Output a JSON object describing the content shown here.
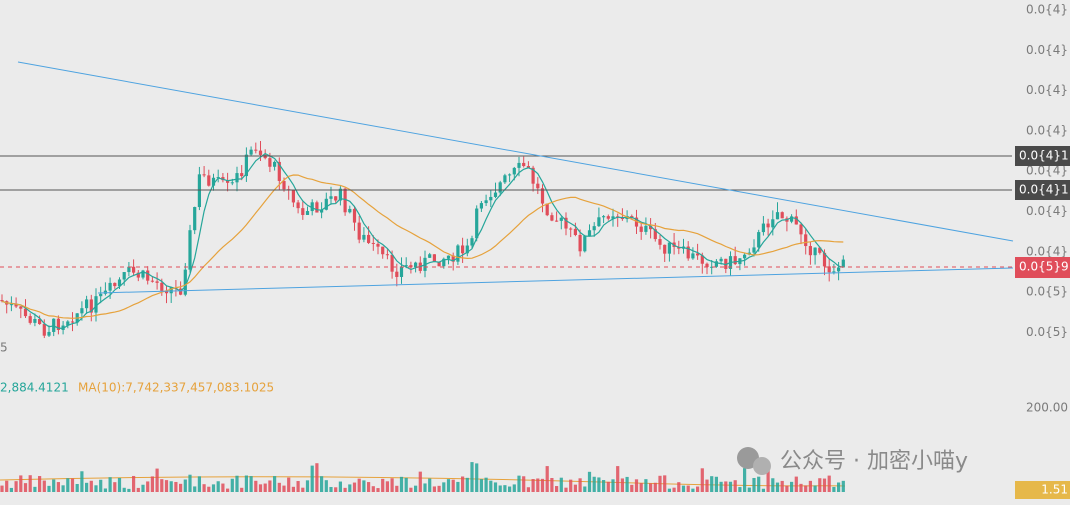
{
  "y_axis": {
    "labels": [
      "0.0{4}",
      "0.0{4}",
      "0.0{4}",
      "0.0{4}",
      "0.0{4}",
      "0.0{4}",
      "0.0{4}",
      "0.0{5}",
      "0.0{5}"
    ]
  },
  "price_tags": [
    "0.0{4}1",
    "0.0{4}1",
    "0.0{5}9"
  ],
  "left_label": "5",
  "indicator": {
    "ma5": "2,884.4121",
    "ma10": "MA(10):7,742,337,457,083.1025"
  },
  "volume_axis": "200.00",
  "volume_tag": "1.51",
  "watermark": "公众号 · 加密小喵y"
}
